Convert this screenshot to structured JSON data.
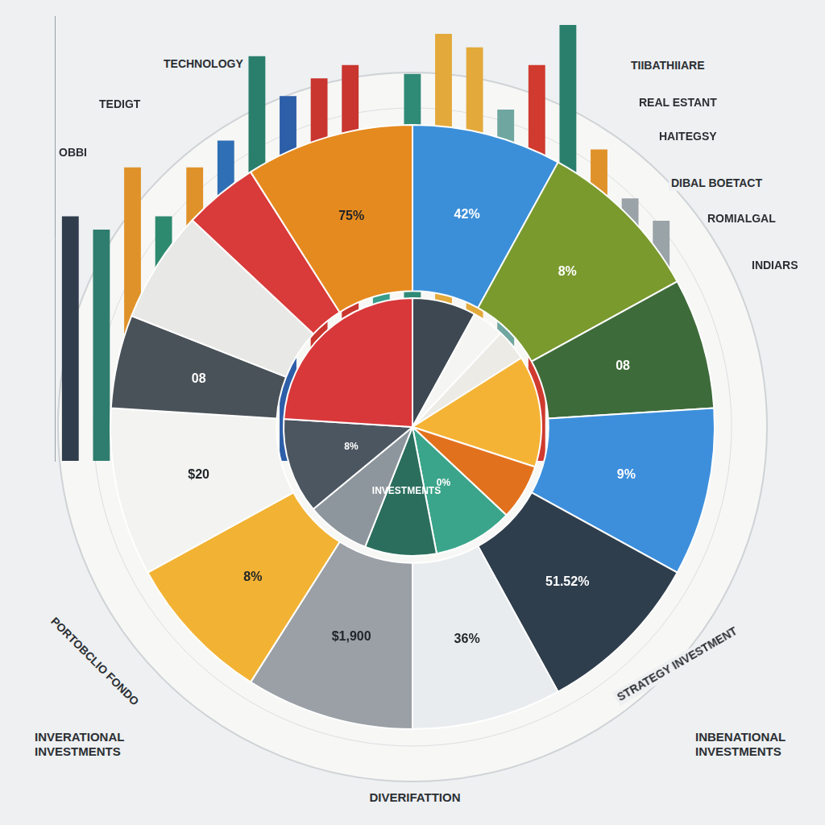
{
  "chart_data": [
    {
      "type": "bar",
      "categories": [
        null,
        null,
        null,
        null,
        null,
        null,
        null,
        null,
        null,
        null,
        null,
        null,
        null,
        null,
        null,
        null,
        null,
        null,
        null,
        null
      ],
      "values": [
        55,
        52,
        66,
        55,
        66,
        72,
        91,
        82,
        86,
        89,
        74,
        87,
        96,
        93,
        79,
        89,
        98,
        70,
        59,
        54
      ],
      "colors": [
        "#2f3d4c",
        "#2e7d6e",
        "#e0922a",
        "#2e8a6f",
        "#e0922a",
        "#2f6fb5",
        "#2a7f6c",
        "#2d5ea8",
        "#c8362f",
        "#c8362f",
        "#3a9c8a",
        "#2f8a76",
        "#e3a93a",
        "#e3a93a",
        "#6fa6a0",
        "#d03a2f",
        "#2a7f6c",
        "#e0922a",
        "#9aa3a8",
        "#9aa3a8"
      ],
      "ylim": [
        0,
        100
      ],
      "grid": false,
      "tick_labels": false
    },
    {
      "type": "doughnut",
      "categories": [
        "42%",
        "8%",
        "08",
        "9%",
        "51.52%",
        "36%",
        "$1,900",
        "8%",
        "$20",
        "08",
        null,
        null,
        "75%"
      ],
      "values": [
        8,
        9,
        7,
        9,
        9,
        8,
        9,
        8,
        9,
        5,
        6,
        4,
        9
      ],
      "colors": [
        "#3b8fd9",
        "#7a9a2e",
        "#3e6b3a",
        "#3d8fdc",
        "#2f3e4d",
        "#e9ecef",
        "#9aa0a6",
        "#f2b233",
        "#f3f3f1",
        "#4a5259",
        "#e8e8e6",
        "#d93a3a",
        "#e58a1f"
      ]
    },
    {
      "type": "pie",
      "categories": [
        null,
        null,
        null,
        null,
        null,
        "0%",
        "INVESTMENTS",
        null,
        "8%",
        null
      ],
      "values": [
        8,
        4,
        4,
        14,
        7,
        10,
        9,
        8,
        12,
        24
      ],
      "colors": [
        "#3d4852",
        "#f5f5f3",
        "#ecebe6",
        "#f5b335",
        "#e2711d",
        "#3aa58a",
        "#2b6e5e",
        "#8d969c",
        "#4b5661",
        "#d8383a"
      ]
    }
  ],
  "labels": {
    "top_left": [
      "TECHNOLOGY",
      "TEDIGT",
      "OBBI"
    ],
    "top_right": [
      "TIIBATHIIARE",
      "REAL ESTANT",
      "HAITEGSY",
      "DIBAL BOETACT",
      "ROMIALGAL",
      "INDIARS"
    ],
    "bottom_left": "INVERATIONAL INVESTMENTS",
    "bottom_right": "INBENATIONAL INVESTMENTS",
    "bottom": "DIVERIFATTION",
    "arc_left": "PORTOBCLIO FONDO",
    "arc_right": "STRATEGY INVESTMENT"
  }
}
